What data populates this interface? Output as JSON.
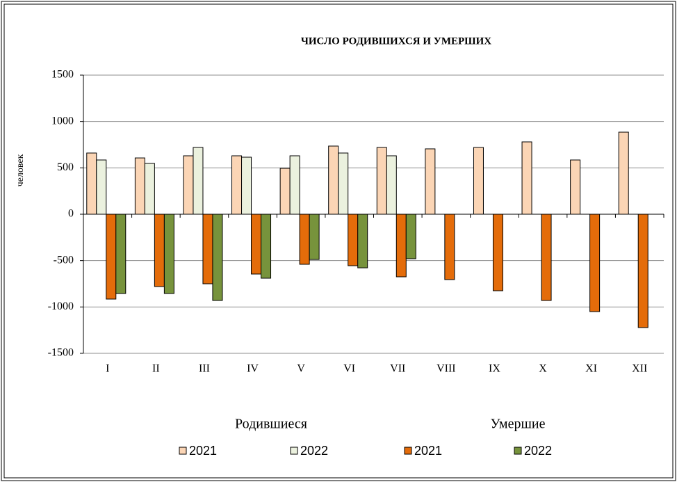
{
  "chart_data": {
    "type": "bar",
    "title": "ЧИСЛО РОДИВШИХСЯ И УМЕРШИХ",
    "y_label": "человек",
    "categories": [
      "I",
      "II",
      "III",
      "IV",
      "V",
      "VI",
      "VII",
      "VIII",
      "IX",
      "X",
      "XI",
      "XII"
    ],
    "legend_groups": [
      "Родившиеся",
      "Умершие"
    ],
    "series": [
      {
        "name": "2021",
        "color": "#fbd5b5",
        "values": [
          660,
          607,
          630,
          630,
          495,
          735,
          720,
          705,
          720,
          780,
          585,
          885
        ]
      },
      {
        "name": "2022",
        "color": "#ebf1de",
        "values": [
          585,
          548,
          720,
          615,
          630,
          660,
          630,
          null,
          null,
          null,
          null,
          null
        ]
      },
      {
        "name": "2021",
        "color": "#e46c0a",
        "values": [
          -915,
          -780,
          -750,
          -645,
          -540,
          -555,
          -675,
          -705,
          -825,
          -930,
          -1050,
          -1222
        ]
      },
      {
        "name": "2022",
        "color": "#77933c",
        "values": [
          -855,
          -855,
          -930,
          -690,
          -488,
          -578,
          -480,
          null,
          null,
          null,
          null,
          null
        ]
      }
    ],
    "ylim": [
      -1500,
      1500
    ],
    "yticks": [
      -1500,
      -1000,
      -500,
      0,
      500,
      1000,
      1500
    ],
    "grid": true
  }
}
